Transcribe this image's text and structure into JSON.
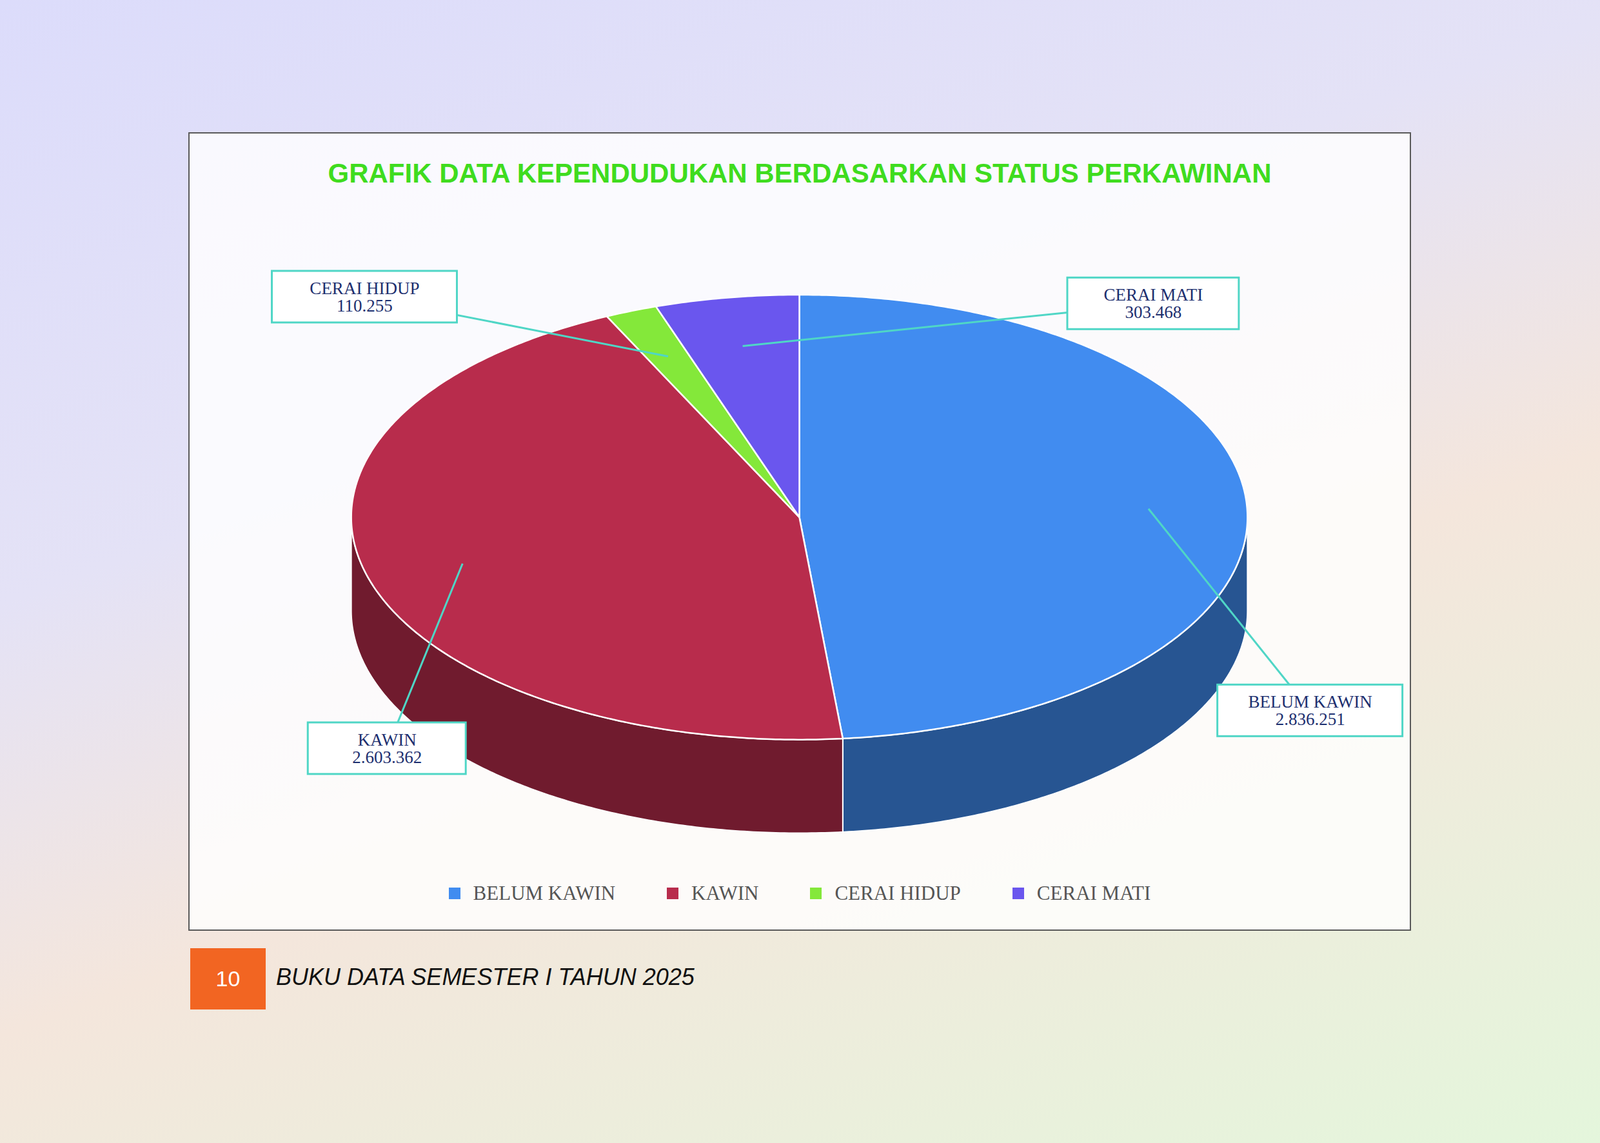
{
  "chart_data": {
    "type": "pie",
    "title": "GRAFIK DATA KEPENDUDUKAN BERDASARKAN STATUS PERKAWINAN",
    "categories": [
      "BELUM KAWIN",
      "KAWIN",
      "CERAI HIDUP",
      "CERAI MATI"
    ],
    "values": [
      2836251,
      2603362,
      110255,
      303468
    ],
    "value_labels": [
      "2.836.251",
      "2.603.362",
      "110.255",
      "303.468"
    ],
    "colors": [
      "#418cf0",
      "#b82c4c",
      "#84e83a",
      "#6a56ee"
    ],
    "data_labels": true,
    "legend": "bottom"
  },
  "page": {
    "number": "10",
    "footer": "BUKU DATA SEMESTER I TAHUN 2025"
  }
}
